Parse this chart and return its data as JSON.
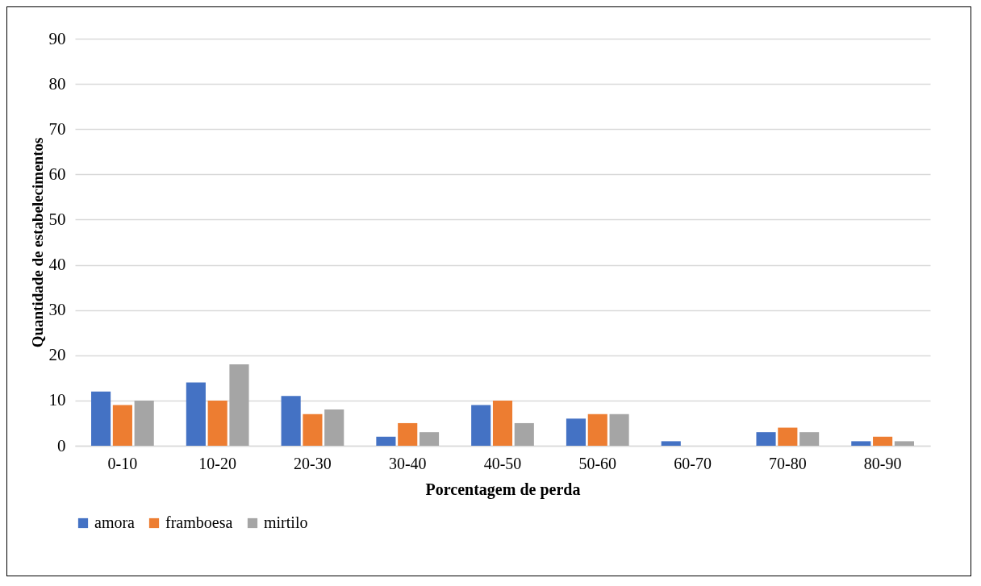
{
  "chart_data": {
    "type": "bar",
    "xlabel": "Porcentagem de perda",
    "ylabel": "Quantidade de estabelecimentos",
    "categories": [
      "0-10",
      "10-20",
      "20-30",
      "30-40",
      "40-50",
      "50-60",
      "60-70",
      "70-80",
      "80-90"
    ],
    "series": [
      {
        "name": "amora",
        "color": "#4472c4",
        "values": [
          12,
          14,
          11,
          2,
          9,
          6,
          1,
          3,
          1
        ]
      },
      {
        "name": "framboesa",
        "color": "#ed7d31",
        "values": [
          9,
          10,
          7,
          5,
          10,
          7,
          0,
          4,
          2
        ]
      },
      {
        "name": "mirtilo",
        "color": "#a5a5a5",
        "values": [
          10,
          18,
          8,
          3,
          5,
          7,
          0,
          3,
          1
        ]
      }
    ],
    "ylim": [
      0,
      90
    ],
    "yticks": [
      0,
      10,
      20,
      30,
      40,
      50,
      60,
      70,
      80,
      90
    ],
    "grid": "y",
    "legend": "bottom"
  }
}
